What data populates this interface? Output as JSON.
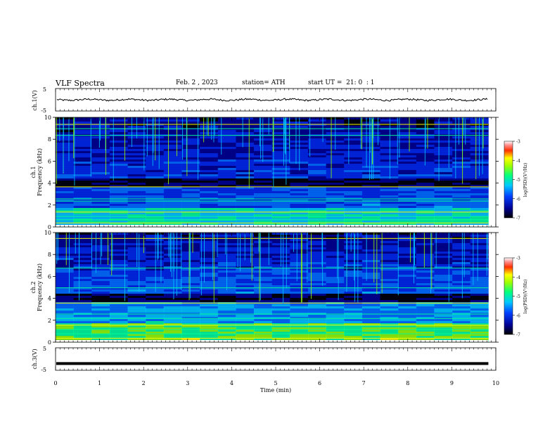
{
  "header": {
    "title": "VLF Spectra",
    "date": "Feb. 2 , 2023",
    "station": "station= ATH",
    "start": "start UT =  21: 0  : 1"
  },
  "chart_data": [
    {
      "type": "line",
      "name": "ch1-waveform",
      "ylabel": "ch.1(V)",
      "ylim": [
        -5,
        5
      ],
      "ytick_labels": [
        "5",
        "-5"
      ],
      "xlim": [
        0,
        10
      ],
      "description_values": {
        "mean": 0.0,
        "amplitude": 0.8
      }
    },
    {
      "type": "heatmap",
      "name": "ch1-spectrogram",
      "channel_label": "ch.1",
      "ylabel": "Frequency (kHz)",
      "ylim": [
        0,
        10
      ],
      "ytick_labels": [
        "0",
        "2",
        "4",
        "6",
        "8",
        "10"
      ],
      "xlim": [
        0,
        10
      ],
      "colorbar": {
        "label": "log(PSD)(V²/Hz)",
        "range": [
          -7,
          -3
        ],
        "tick_labels": [
          "-3",
          "-4",
          "-5",
          "-6",
          "-7"
        ]
      }
    },
    {
      "type": "heatmap",
      "name": "ch2-spectrogram",
      "channel_label": "ch.2",
      "ylabel": "Frequency (kHz)",
      "ylim": [
        0,
        10
      ],
      "ytick_labels": [
        "0",
        "2",
        "4",
        "6",
        "8",
        "10"
      ],
      "xlim": [
        0,
        10
      ],
      "colorbar": {
        "label": "log(PSD)(V²/Hz)",
        "range": [
          -7,
          -3
        ],
        "tick_labels": [
          "-3",
          "-4",
          "-5",
          "-6",
          "-7"
        ]
      }
    },
    {
      "type": "line",
      "name": "ch3-waveform",
      "ylabel": "ch.3(V)",
      "ylim": [
        -5,
        5
      ],
      "ytick_labels": [
        "5",
        "-5"
      ],
      "xlim": [
        0,
        10
      ],
      "description_values": {
        "mean": -2.0,
        "amplitude": 0.0
      }
    }
  ],
  "x_axis": {
    "label": "Time (min)",
    "tick_labels": [
      "0",
      "1",
      "2",
      "3",
      "4",
      "5",
      "6",
      "7",
      "8",
      "9",
      "10"
    ],
    "range": [
      0,
      10
    ],
    "data_end": 9.83
  }
}
